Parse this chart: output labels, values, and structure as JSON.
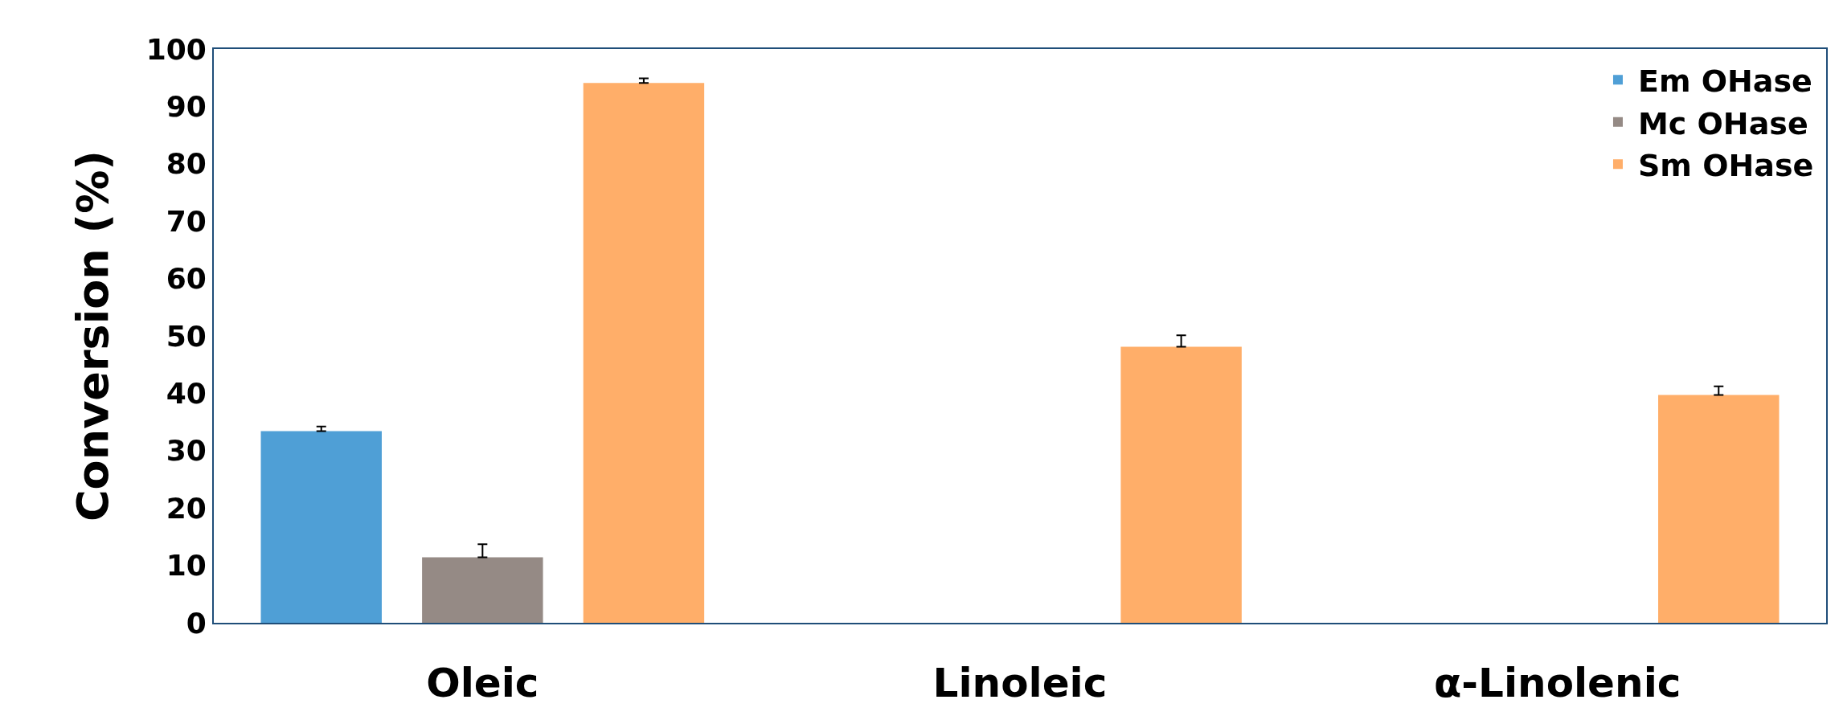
{
  "chart_data": {
    "type": "bar",
    "ylabel": "Conversion (%)",
    "categories": [
      "Oleic",
      "Linoleic",
      "α-Linolenic"
    ],
    "series": [
      {
        "name": "Em OHase",
        "color": "#4f9fd6",
        "values": [
          33.4,
          null,
          null
        ],
        "errors": [
          [
            33.4,
            34.2
          ],
          null,
          null
        ]
      },
      {
        "name": "Mc OHase",
        "color": "#958a85",
        "values": [
          11.4,
          null,
          null
        ],
        "errors": [
          [
            11.4,
            13.7
          ],
          null,
          null
        ]
      },
      {
        "name": "Sm OHase",
        "color": "#ffae69",
        "values": [
          94.1,
          48.1,
          39.7
        ],
        "errors": [
          [
            94.1,
            94.9
          ],
          [
            48.1,
            50.1
          ],
          [
            39.7,
            41.2
          ]
        ]
      }
    ],
    "ylim": [
      0,
      100
    ],
    "yticks": [
      0,
      10,
      20,
      30,
      40,
      50,
      60,
      70,
      80,
      90,
      100
    ],
    "grid": false,
    "legend": "top right"
  }
}
